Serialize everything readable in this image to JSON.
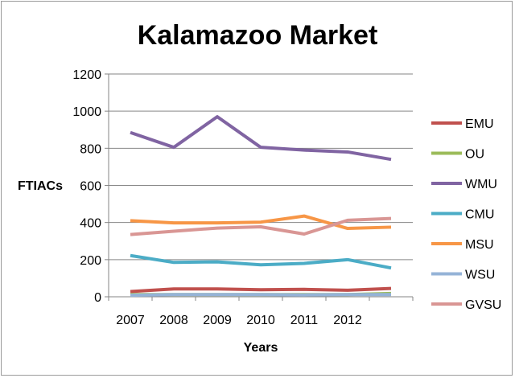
{
  "chart_data": {
    "type": "line",
    "title": "Kalamazoo Market",
    "xlabel": "Years",
    "ylabel": "FTIACs",
    "ylim": [
      0,
      1200
    ],
    "yticks": [
      "0",
      "200",
      "400",
      "600",
      "800",
      "1000",
      "1200"
    ],
    "categories": [
      "2007",
      "2008",
      "2009",
      "2010",
      "2011",
      "2012",
      ""
    ],
    "grid": "horizontal",
    "legend_position": "right",
    "series": [
      {
        "name": "EMU",
        "color": "#c0504d",
        "values": [
          28,
          42,
          42,
          38,
          40,
          35,
          45
        ]
      },
      {
        "name": "OU",
        "color": "#9bbb59",
        "values": [
          12,
          12,
          12,
          12,
          12,
          12,
          18
        ]
      },
      {
        "name": "WMU",
        "color": "#8064a2",
        "values": [
          885,
          805,
          970,
          805,
          790,
          780,
          740
        ]
      },
      {
        "name": "CMU",
        "color": "#4bacc6",
        "values": [
          222,
          185,
          188,
          172,
          180,
          200,
          155
        ]
      },
      {
        "name": "MSU",
        "color": "#f79646",
        "values": [
          410,
          398,
          398,
          402,
          435,
          368,
          375
        ]
      },
      {
        "name": "WSU",
        "color": "#95b3d7",
        "values": [
          8,
          12,
          12,
          12,
          10,
          12,
          12
        ]
      },
      {
        "name": "GVSU",
        "color": "#d99694",
        "values": [
          335,
          353,
          370,
          377,
          338,
          412,
          422
        ]
      }
    ]
  }
}
